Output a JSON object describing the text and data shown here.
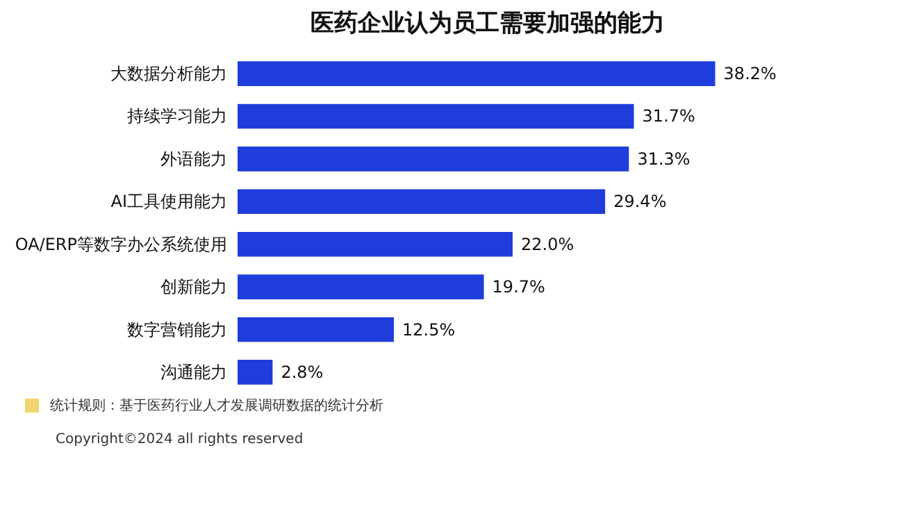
{
  "chart_data": {
    "type": "bar",
    "orientation": "horizontal",
    "title": "医药企业认为员工需要加强的能力",
    "categories": [
      "大数据分析能力",
      "持续学习能力",
      "外语能力",
      "AI工具使用能力",
      "OA/ERP等数字办公系统使用",
      "创新能力",
      "数字营销能力",
      "沟通能力"
    ],
    "values": [
      38.2,
      31.7,
      31.3,
      29.4,
      22.0,
      19.7,
      12.5,
      2.8
    ],
    "value_labels": [
      "38.2%",
      "31.7%",
      "31.3%",
      "29.4%",
      "22.0%",
      "19.7%",
      "12.5%",
      "2.8%"
    ],
    "color": "#1f3ddb",
    "annotations": [
      "统计规则：基于医药行业人才发展调研数据的统计分析",
      "Copyright©2024 all rights reserved"
    ]
  }
}
